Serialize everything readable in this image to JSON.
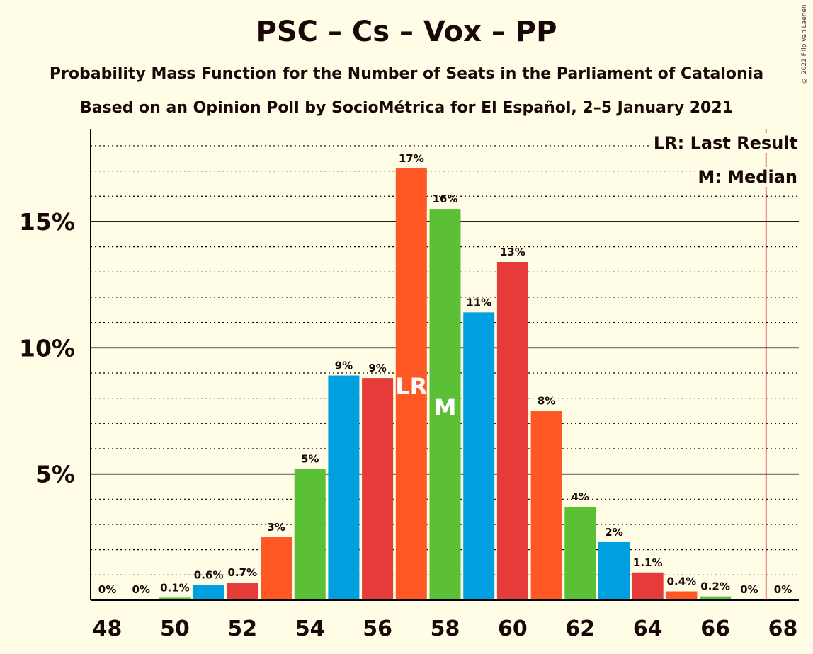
{
  "title": "PSC – Cs – Vox – PP",
  "subtitle1": "Probability Mass Function for the Number of Seats in the Parliament of Catalonia",
  "subtitle2": "Based on an Opinion Poll by SocioMétrica for El Español, 2–5 January 2021",
  "copyright": "© 2021 Filip van Laenen",
  "legend": {
    "last_result": "LR: Last Result",
    "median": "M: Median"
  },
  "colors": {
    "background": "#FFFDE6",
    "psc": "#E73B39",
    "cs": "#FF5824",
    "vox": "#5BC035",
    "pp": "#009FE0",
    "majority_line": "#C00000"
  },
  "chart_data": {
    "type": "bar",
    "title": "PSC – Cs – Vox – PP",
    "xlabel": "",
    "ylabel": "",
    "ylim": [
      0,
      18.5
    ],
    "yticks": [
      {
        "value": 5,
        "label": "5%"
      },
      {
        "value": 10,
        "label": "10%"
      },
      {
        "value": 15,
        "label": "15%"
      }
    ],
    "xticks": [
      "48",
      "50",
      "52",
      "54",
      "56",
      "58",
      "60",
      "62",
      "64",
      "66",
      "68"
    ],
    "categories": [
      48,
      49,
      50,
      51,
      52,
      53,
      54,
      55,
      56,
      57,
      58,
      59,
      60,
      61,
      62,
      63,
      64,
      65,
      66,
      67,
      68
    ],
    "values": [
      0,
      0,
      0.1,
      0.6,
      0.7,
      2.5,
      5.2,
      8.9,
      8.8,
      17.1,
      15.5,
      11.4,
      13.4,
      7.5,
      3.7,
      2.3,
      1.1,
      0.35,
      0.15,
      0,
      0
    ],
    "labels": [
      "0%",
      "0%",
      "0.1%",
      "0.6%",
      "0.7%",
      "3%",
      "5%",
      "9%",
      "9%",
      "17%",
      "16%",
      "11%",
      "13%",
      "8%",
      "4%",
      "2%",
      "1.1%",
      "0.4%",
      "0.2%",
      "0%",
      "0%"
    ],
    "bar_colors": [
      "#009FE0",
      "#E73B39",
      "#5BC035",
      "#009FE0",
      "#E73B39",
      "#FF5824",
      "#5BC035",
      "#009FE0",
      "#E73B39",
      "#FF5824",
      "#5BC035",
      "#009FE0",
      "#E73B39",
      "#FF5824",
      "#5BC035",
      "#009FE0",
      "#E73B39",
      "#FF5824",
      "#5BC035",
      "#009FE0",
      "#E73B39"
    ],
    "last_result": {
      "x": 57,
      "label": "LR"
    },
    "median": {
      "x": 58,
      "label": "M"
    },
    "majority_line_x": 67.5,
    "grid": true,
    "legend_position": "top-right"
  }
}
